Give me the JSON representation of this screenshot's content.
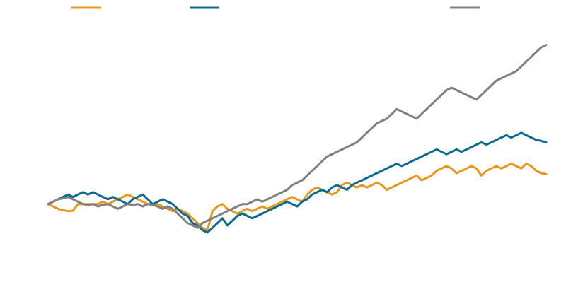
{
  "chart_data": {
    "type": "line",
    "title": "",
    "xlabel": "",
    "ylabel": "",
    "grid": false,
    "axes_visible": false,
    "legend_position": "top",
    "x_range": [
      0,
      100
    ],
    "y_range": [
      0.8,
      1.4
    ],
    "series": [
      {
        "color": "#E8961E",
        "legend_slot": 0,
        "values": [
          1.0,
          0.995,
          0.99,
          0.987,
          0.985,
          0.986,
          1.0,
          1.0,
          1.0,
          1.0,
          1.0,
          1.005,
          1.0,
          1.005,
          1.01,
          1.015,
          1.02,
          1.015,
          1.01,
          1.005,
          1.0,
          1.0,
          1.0,
          0.995,
          0.99,
          0.985,
          0.99,
          0.985,
          0.98,
          0.97,
          0.96,
          0.95,
          0.945,
          0.985,
          0.995,
          1.0,
          0.99,
          0.985,
          0.98,
          0.985,
          0.99,
          0.985,
          0.99,
          0.995,
          0.99,
          0.995,
          1.0,
          1.005,
          1.01,
          1.015,
          1.01,
          1.005,
          1.02,
          1.03,
          1.035,
          1.03,
          1.025,
          1.02,
          1.025,
          1.04,
          1.045,
          1.04,
          1.035,
          1.04,
          1.035,
          1.04,
          1.045,
          1.04,
          1.03,
          1.035,
          1.04,
          1.045,
          1.05,
          1.055,
          1.06,
          1.05,
          1.055,
          1.06,
          1.07,
          1.075,
          1.08,
          1.075,
          1.065,
          1.07,
          1.075,
          1.08,
          1.075,
          1.06,
          1.07,
          1.075,
          1.08,
          1.075,
          1.08,
          1.085,
          1.08,
          1.075,
          1.085,
          1.08,
          1.07,
          1.065,
          1.063
        ]
      },
      {
        "color": "#0B6A8F",
        "legend_slot": 1,
        "values": [
          1.0,
          1.005,
          1.01,
          1.015,
          1.02,
          1.015,
          1.02,
          1.025,
          1.02,
          1.025,
          1.02,
          1.015,
          1.01,
          1.015,
          1.01,
          1.005,
          1.0,
          1.01,
          1.015,
          1.02,
          1.01,
          1.0,
          1.005,
          1.01,
          1.005,
          1.0,
          0.99,
          0.98,
          0.975,
          0.96,
          0.955,
          0.945,
          0.94,
          0.95,
          0.96,
          0.97,
          0.955,
          0.965,
          0.975,
          0.98,
          0.975,
          0.97,
          0.975,
          0.98,
          0.985,
          0.99,
          0.995,
          1.0,
          1.005,
          1.0,
          0.995,
          1.005,
          1.01,
          1.02,
          1.025,
          1.03,
          1.025,
          1.035,
          1.04,
          1.035,
          1.03,
          1.04,
          1.045,
          1.05,
          1.055,
          1.06,
          1.065,
          1.07,
          1.075,
          1.08,
          1.085,
          1.08,
          1.085,
          1.09,
          1.095,
          1.1,
          1.105,
          1.11,
          1.115,
          1.11,
          1.105,
          1.11,
          1.115,
          1.11,
          1.115,
          1.12,
          1.125,
          1.13,
          1.125,
          1.13,
          1.135,
          1.14,
          1.145,
          1.14,
          1.145,
          1.15,
          1.145,
          1.14,
          1.135,
          1.133,
          1.13
        ]
      },
      {
        "color": "#808080",
        "legend_slot": 3,
        "values": [
          1.0,
          1.005,
          1.01,
          1.012,
          1.015,
          1.01,
          1.005,
          1.0,
          0.998,
          1.0,
          0.995,
          0.998,
          1.0,
          0.995,
          0.99,
          0.995,
          1.0,
          0.998,
          1.0,
          0.995,
          1.0,
          0.998,
          0.995,
          0.99,
          0.995,
          0.99,
          0.98,
          0.97,
          0.96,
          0.955,
          0.95,
          0.96,
          0.965,
          0.97,
          0.975,
          0.98,
          0.985,
          0.99,
          0.995,
          1.0,
          1.0,
          1.005,
          1.01,
          1.005,
          1.01,
          1.015,
          1.02,
          1.025,
          1.03,
          1.04,
          1.045,
          1.05,
          1.06,
          1.07,
          1.08,
          1.09,
          1.1,
          1.105,
          1.11,
          1.115,
          1.12,
          1.125,
          1.13,
          1.14,
          1.15,
          1.16,
          1.17,
          1.175,
          1.18,
          1.19,
          1.2,
          1.195,
          1.19,
          1.185,
          1.18,
          1.19,
          1.2,
          1.21,
          1.22,
          1.23,
          1.24,
          1.245,
          1.24,
          1.235,
          1.23,
          1.225,
          1.22,
          1.23,
          1.24,
          1.25,
          1.26,
          1.265,
          1.27,
          1.275,
          1.28,
          1.29,
          1.3,
          1.31,
          1.32,
          1.33,
          1.335
        ]
      }
    ]
  }
}
